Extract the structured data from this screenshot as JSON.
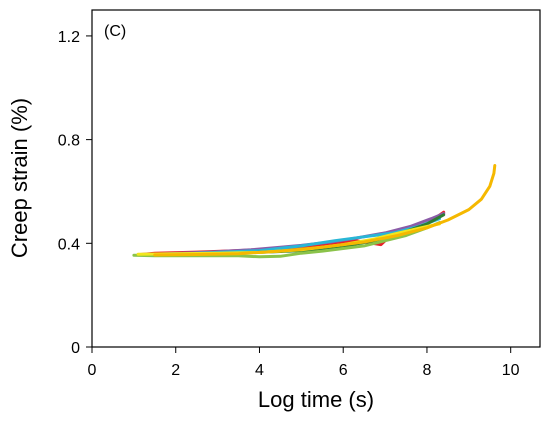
{
  "chart_data": {
    "type": "line",
    "panel_label": "(C)",
    "title": "",
    "xlabel": "Log time (s)",
    "ylabel": "Creep strain (%)",
    "xlim": [
      0,
      10.7
    ],
    "ylim": [
      0,
      1.3
    ],
    "x_ticks": [
      0,
      2,
      4,
      6,
      8,
      10
    ],
    "y_ticks": [
      0,
      0.4,
      0.8,
      1.2
    ],
    "x_tick_labels": [
      "0",
      "2",
      "4",
      "6",
      "8",
      "10"
    ],
    "y_tick_labels": [
      "0",
      "0.4",
      "0.8",
      "1.2"
    ],
    "grid": false,
    "legend": "none",
    "series": [
      {
        "color": "#e8222a",
        "points": [
          [
            1.1,
            0.356
          ],
          [
            1.5,
            0.362
          ],
          [
            2.5,
            0.366
          ],
          [
            3.5,
            0.372
          ],
          [
            4.5,
            0.38
          ],
          [
            5.5,
            0.392
          ],
          [
            6.3,
            0.41
          ],
          [
            6.9,
            0.395
          ],
          [
            7.1,
            0.425
          ],
          [
            7.5,
            0.445
          ],
          [
            8.0,
            0.475
          ],
          [
            8.4,
            0.52
          ]
        ]
      },
      {
        "color": "#8b5ca8",
        "points": [
          [
            1.1,
            0.356
          ],
          [
            1.8,
            0.36
          ],
          [
            2.8,
            0.366
          ],
          [
            3.8,
            0.375
          ],
          [
            4.5,
            0.385
          ],
          [
            5.0,
            0.392
          ],
          [
            5.7,
            0.405
          ],
          [
            6.3,
            0.42
          ],
          [
            7.0,
            0.44
          ],
          [
            7.6,
            0.465
          ],
          [
            8.1,
            0.495
          ],
          [
            8.4,
            0.515
          ]
        ]
      },
      {
        "color": "#29b6d6",
        "points": [
          [
            1.1,
            0.356
          ],
          [
            2.0,
            0.358
          ],
          [
            3.0,
            0.365
          ],
          [
            4.0,
            0.372
          ],
          [
            5.0,
            0.39
          ],
          [
            5.8,
            0.41
          ],
          [
            6.5,
            0.425
          ],
          [
            7.2,
            0.44
          ],
          [
            7.8,
            0.465
          ],
          [
            8.3,
            0.495
          ]
        ]
      },
      {
        "color": "#2e7d32",
        "points": [
          [
            1.1,
            0.356
          ],
          [
            2.0,
            0.357
          ],
          [
            3.0,
            0.36
          ],
          [
            4.0,
            0.365
          ],
          [
            5.0,
            0.372
          ],
          [
            6.0,
            0.388
          ],
          [
            6.8,
            0.412
          ],
          [
            7.4,
            0.44
          ],
          [
            8.0,
            0.475
          ],
          [
            8.4,
            0.51
          ]
        ]
      },
      {
        "color": "#8bc34a",
        "points": [
          [
            1.0,
            0.354
          ],
          [
            1.5,
            0.352
          ],
          [
            2.5,
            0.352
          ],
          [
            3.5,
            0.352
          ],
          [
            4.0,
            0.348
          ],
          [
            4.5,
            0.35
          ],
          [
            5.0,
            0.362
          ],
          [
            5.5,
            0.37
          ],
          [
            6.0,
            0.38
          ],
          [
            6.5,
            0.39
          ],
          [
            7.0,
            0.41
          ],
          [
            7.5,
            0.43
          ],
          [
            8.0,
            0.46
          ],
          [
            8.3,
            0.48
          ]
        ]
      },
      {
        "color": "#f2e61e",
        "points": [
          [
            1.1,
            0.358
          ],
          [
            2.0,
            0.36
          ],
          [
            3.0,
            0.362
          ],
          [
            4.0,
            0.365
          ],
          [
            5.0,
            0.375
          ],
          [
            6.0,
            0.395
          ],
          [
            6.7,
            0.415
          ],
          [
            7.2,
            0.435
          ],
          [
            7.6,
            0.45
          ],
          [
            8.0,
            0.465
          ],
          [
            8.3,
            0.475
          ]
        ]
      },
      {
        "color": "#f5b800",
        "points": [
          [
            1.5,
            0.355
          ],
          [
            2.5,
            0.357
          ],
          [
            3.5,
            0.36
          ],
          [
            4.5,
            0.37
          ],
          [
            5.5,
            0.385
          ],
          [
            6.5,
            0.405
          ],
          [
            7.3,
            0.43
          ],
          [
            8.0,
            0.46
          ],
          [
            8.5,
            0.49
          ],
          [
            9.0,
            0.53
          ],
          [
            9.3,
            0.57
          ],
          [
            9.5,
            0.62
          ],
          [
            9.6,
            0.67
          ],
          [
            9.62,
            0.7
          ]
        ]
      }
    ]
  }
}
